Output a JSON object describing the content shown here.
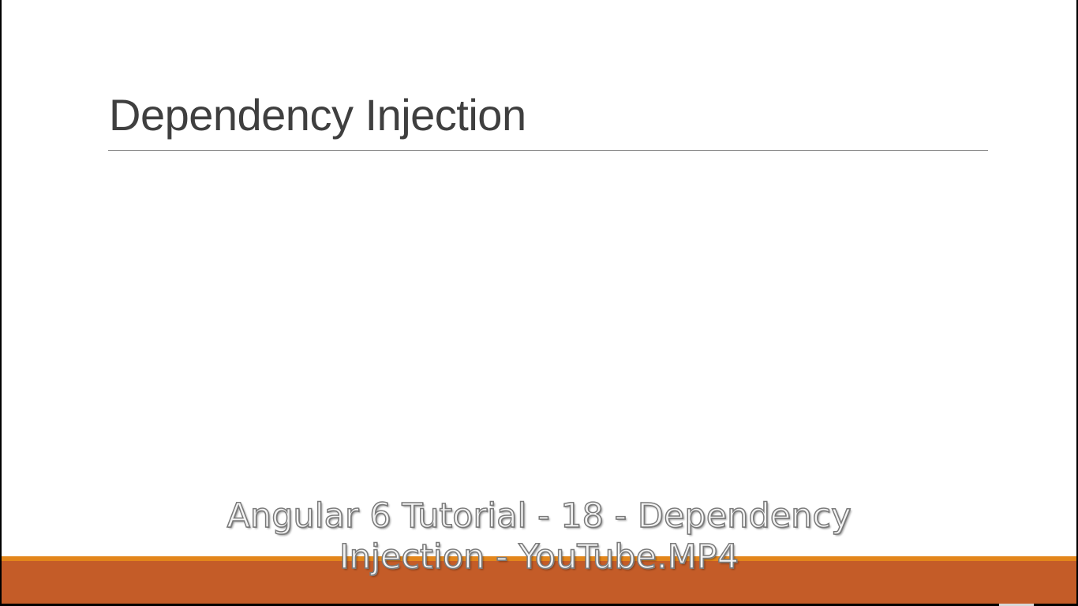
{
  "slide": {
    "title": "Dependency Injection"
  },
  "overlay_caption": {
    "line1": "Angular 6 Tutorial - 18 - Dependency",
    "line2": "Injection - YouTube.MP4"
  },
  "colors": {
    "background": "#ffffff",
    "title_text": "#3f3f3f",
    "title_rule": "#7f7f7f",
    "footer_band": "#c45c28",
    "footer_accent": "#e3861b",
    "caption_fill": "#f4f4f4",
    "frame": "#000000"
  }
}
